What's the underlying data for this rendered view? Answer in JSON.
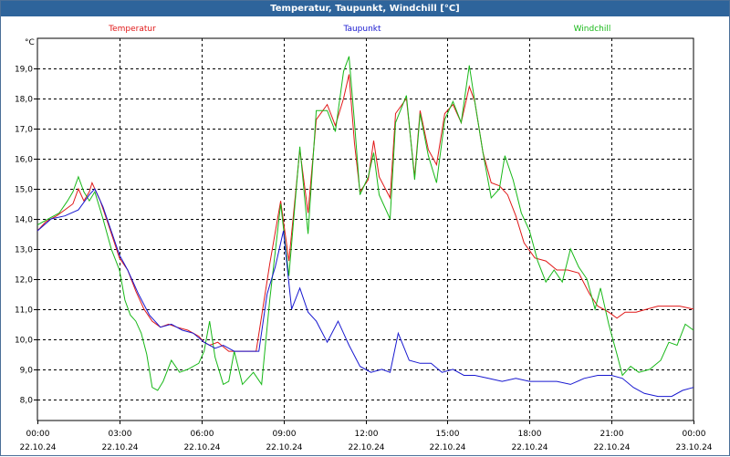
{
  "window": {
    "title": "Temperatur, Taupunkt, Windchill [°C]"
  },
  "chart_data": {
    "type": "line",
    "title": "Temperatur, Taupunkt, Windchill [°C]",
    "ylabel": "°C",
    "xlabel": "",
    "ylim": [
      7.3,
      20.0
    ],
    "xlim": [
      0,
      24
    ],
    "grid": true,
    "y_ticks": [
      "8,0",
      "9,0",
      "10,0",
      "11,0",
      "12,0",
      "13,0",
      "14,0",
      "15,0",
      "16,0",
      "17,0",
      "18,0",
      "19,0"
    ],
    "y_tick_values": [
      8,
      9,
      10,
      11,
      12,
      13,
      14,
      15,
      16,
      17,
      18,
      19
    ],
    "x_ticks": [
      {
        "value": 0,
        "time": "00:00",
        "date": "22.10.24"
      },
      {
        "value": 3,
        "time": "03:00",
        "date": "22.10.24"
      },
      {
        "value": 6,
        "time": "06:00",
        "date": "22.10.24"
      },
      {
        "value": 9,
        "time": "09:00",
        "date": "22.10.24"
      },
      {
        "value": 12,
        "time": "12:00",
        "date": "22.10.24"
      },
      {
        "value": 15,
        "time": "15:00",
        "date": "22.10.24"
      },
      {
        "value": 18,
        "time": "18:00",
        "date": "22.10.24"
      },
      {
        "value": 21,
        "time": "21:00",
        "date": "22.10.24"
      },
      {
        "value": 24,
        "time": "00:00",
        "date": "23.10.24"
      }
    ],
    "series": [
      {
        "name": "Temperatur",
        "color": "#e01818",
        "points": [
          [
            0,
            13.6
          ],
          [
            0.3,
            13.9
          ],
          [
            0.7,
            14.1
          ],
          [
            1.0,
            14.3
          ],
          [
            1.3,
            14.5
          ],
          [
            1.5,
            15.0
          ],
          [
            1.7,
            14.6
          ],
          [
            1.9,
            14.9
          ],
          [
            2.0,
            15.2
          ],
          [
            2.3,
            14.6
          ],
          [
            2.6,
            13.8
          ],
          [
            3.0,
            12.7
          ],
          [
            3.3,
            12.3
          ],
          [
            3.6,
            11.6
          ],
          [
            3.9,
            11.0
          ],
          [
            4.2,
            10.6
          ],
          [
            4.5,
            10.4
          ],
          [
            4.8,
            10.5
          ],
          [
            5.1,
            10.4
          ],
          [
            5.5,
            10.3
          ],
          [
            5.9,
            10.1
          ],
          [
            6.1,
            9.9
          ],
          [
            6.3,
            9.8
          ],
          [
            6.6,
            9.9
          ],
          [
            7.0,
            9.6
          ],
          [
            7.5,
            9.6
          ],
          [
            8.0,
            9.6
          ],
          [
            8.5,
            12.5
          ],
          [
            8.9,
            14.6
          ],
          [
            9.2,
            12.6
          ],
          [
            9.6,
            16.3
          ],
          [
            9.9,
            14.2
          ],
          [
            10.2,
            17.3
          ],
          [
            10.6,
            17.8
          ],
          [
            10.9,
            17.1
          ],
          [
            11.2,
            18.0
          ],
          [
            11.4,
            18.8
          ],
          [
            11.6,
            16.5
          ],
          [
            11.8,
            14.9
          ],
          [
            12.1,
            15.3
          ],
          [
            12.3,
            16.6
          ],
          [
            12.5,
            15.4
          ],
          [
            12.9,
            14.7
          ],
          [
            13.1,
            17.5
          ],
          [
            13.5,
            18.0
          ],
          [
            13.8,
            15.4
          ],
          [
            14.0,
            17.6
          ],
          [
            14.3,
            16.3
          ],
          [
            14.6,
            15.8
          ],
          [
            14.9,
            17.5
          ],
          [
            15.2,
            17.8
          ],
          [
            15.5,
            17.2
          ],
          [
            15.8,
            18.4
          ],
          [
            16.0,
            17.9
          ],
          [
            16.3,
            16.2
          ],
          [
            16.6,
            15.2
          ],
          [
            16.9,
            15.1
          ],
          [
            17.2,
            14.8
          ],
          [
            17.5,
            14.1
          ],
          [
            17.8,
            13.2
          ],
          [
            18.2,
            12.7
          ],
          [
            18.6,
            12.6
          ],
          [
            19.0,
            12.3
          ],
          [
            19.4,
            12.3
          ],
          [
            19.8,
            12.2
          ],
          [
            20.2,
            11.5
          ],
          [
            20.5,
            11.1
          ],
          [
            20.9,
            10.9
          ],
          [
            21.2,
            10.7
          ],
          [
            21.5,
            10.9
          ],
          [
            21.9,
            10.9
          ],
          [
            22.3,
            11.0
          ],
          [
            22.7,
            11.1
          ],
          [
            23.1,
            11.1
          ],
          [
            23.5,
            11.1
          ],
          [
            24.0,
            11.0
          ]
        ]
      },
      {
        "name": "Taupunkt",
        "color": "#1818d0",
        "points": [
          [
            0,
            13.6
          ],
          [
            0.5,
            14.0
          ],
          [
            1.0,
            14.1
          ],
          [
            1.5,
            14.3
          ],
          [
            1.9,
            14.8
          ],
          [
            2.1,
            15.0
          ],
          [
            2.4,
            14.4
          ],
          [
            2.7,
            13.6
          ],
          [
            3.0,
            12.8
          ],
          [
            3.3,
            12.3
          ],
          [
            3.7,
            11.5
          ],
          [
            4.1,
            10.8
          ],
          [
            4.5,
            10.4
          ],
          [
            4.9,
            10.5
          ],
          [
            5.3,
            10.3
          ],
          [
            5.7,
            10.2
          ],
          [
            6.1,
            9.9
          ],
          [
            6.5,
            9.7
          ],
          [
            6.8,
            9.8
          ],
          [
            7.2,
            9.6
          ],
          [
            7.6,
            9.6
          ],
          [
            8.1,
            9.6
          ],
          [
            8.4,
            11.5
          ],
          [
            8.7,
            12.4
          ],
          [
            9.0,
            13.6
          ],
          [
            9.3,
            11.0
          ],
          [
            9.6,
            11.7
          ],
          [
            9.9,
            10.9
          ],
          [
            10.2,
            10.6
          ],
          [
            10.6,
            9.9
          ],
          [
            11.0,
            10.6
          ],
          [
            11.4,
            9.8
          ],
          [
            11.8,
            9.1
          ],
          [
            12.2,
            8.9
          ],
          [
            12.6,
            9.0
          ],
          [
            12.9,
            8.9
          ],
          [
            13.2,
            10.2
          ],
          [
            13.6,
            9.3
          ],
          [
            14.0,
            9.2
          ],
          [
            14.4,
            9.2
          ],
          [
            14.8,
            8.9
          ],
          [
            15.2,
            9.0
          ],
          [
            15.6,
            8.8
          ],
          [
            16.0,
            8.8
          ],
          [
            16.5,
            8.7
          ],
          [
            17.0,
            8.6
          ],
          [
            17.5,
            8.7
          ],
          [
            18.0,
            8.6
          ],
          [
            18.5,
            8.6
          ],
          [
            19.0,
            8.6
          ],
          [
            19.5,
            8.5
          ],
          [
            20.0,
            8.7
          ],
          [
            20.5,
            8.8
          ],
          [
            21.0,
            8.8
          ],
          [
            21.4,
            8.7
          ],
          [
            21.8,
            8.4
          ],
          [
            22.2,
            8.2
          ],
          [
            22.7,
            8.1
          ],
          [
            23.2,
            8.1
          ],
          [
            23.6,
            8.3
          ],
          [
            24.0,
            8.4
          ]
        ]
      },
      {
        "name": "Windchill",
        "color": "#18b818",
        "points": [
          [
            0,
            13.8
          ],
          [
            0.4,
            14.0
          ],
          [
            0.8,
            14.2
          ],
          [
            1.1,
            14.6
          ],
          [
            1.3,
            14.9
          ],
          [
            1.5,
            15.4
          ],
          [
            1.7,
            14.9
          ],
          [
            1.9,
            14.6
          ],
          [
            2.1,
            14.9
          ],
          [
            2.4,
            14.0
          ],
          [
            2.7,
            13.0
          ],
          [
            3.0,
            12.3
          ],
          [
            3.2,
            11.3
          ],
          [
            3.4,
            10.8
          ],
          [
            3.6,
            10.6
          ],
          [
            3.8,
            10.2
          ],
          [
            4.0,
            9.5
          ],
          [
            4.2,
            8.4
          ],
          [
            4.4,
            8.3
          ],
          [
            4.6,
            8.6
          ],
          [
            4.9,
            9.3
          ],
          [
            5.2,
            8.9
          ],
          [
            5.5,
            9.0
          ],
          [
            5.9,
            9.2
          ],
          [
            6.1,
            9.6
          ],
          [
            6.3,
            10.6
          ],
          [
            6.5,
            9.4
          ],
          [
            6.8,
            8.5
          ],
          [
            7.0,
            8.6
          ],
          [
            7.2,
            9.6
          ],
          [
            7.5,
            8.5
          ],
          [
            7.9,
            8.9
          ],
          [
            8.2,
            8.5
          ],
          [
            8.5,
            11.3
          ],
          [
            8.9,
            14.5
          ],
          [
            9.2,
            12.1
          ],
          [
            9.6,
            16.4
          ],
          [
            9.9,
            13.5
          ],
          [
            10.2,
            17.6
          ],
          [
            10.6,
            17.6
          ],
          [
            10.9,
            16.9
          ],
          [
            11.2,
            18.9
          ],
          [
            11.4,
            19.4
          ],
          [
            11.6,
            17.2
          ],
          [
            11.8,
            14.8
          ],
          [
            12.1,
            15.4
          ],
          [
            12.3,
            16.2
          ],
          [
            12.5,
            14.8
          ],
          [
            12.9,
            14.0
          ],
          [
            13.1,
            17.2
          ],
          [
            13.5,
            18.1
          ],
          [
            13.8,
            15.3
          ],
          [
            14.0,
            17.5
          ],
          [
            14.3,
            16.1
          ],
          [
            14.6,
            15.2
          ],
          [
            14.9,
            17.3
          ],
          [
            15.2,
            17.9
          ],
          [
            15.5,
            17.2
          ],
          [
            15.8,
            19.1
          ],
          [
            16.0,
            17.9
          ],
          [
            16.3,
            16.2
          ],
          [
            16.6,
            14.7
          ],
          [
            16.9,
            15.0
          ],
          [
            17.1,
            16.1
          ],
          [
            17.4,
            15.3
          ],
          [
            17.7,
            14.2
          ],
          [
            18.0,
            13.6
          ],
          [
            18.3,
            12.6
          ],
          [
            18.6,
            11.9
          ],
          [
            18.9,
            12.3
          ],
          [
            19.2,
            11.9
          ],
          [
            19.5,
            13.0
          ],
          [
            19.8,
            12.4
          ],
          [
            20.1,
            12.0
          ],
          [
            20.4,
            11.0
          ],
          [
            20.6,
            11.7
          ],
          [
            20.9,
            10.5
          ],
          [
            21.2,
            9.5
          ],
          [
            21.4,
            8.8
          ],
          [
            21.7,
            9.1
          ],
          [
            22.0,
            8.9
          ],
          [
            22.4,
            9.0
          ],
          [
            22.8,
            9.3
          ],
          [
            23.1,
            9.9
          ],
          [
            23.4,
            9.8
          ],
          [
            23.7,
            10.5
          ],
          [
            24.0,
            10.3
          ]
        ]
      }
    ]
  }
}
